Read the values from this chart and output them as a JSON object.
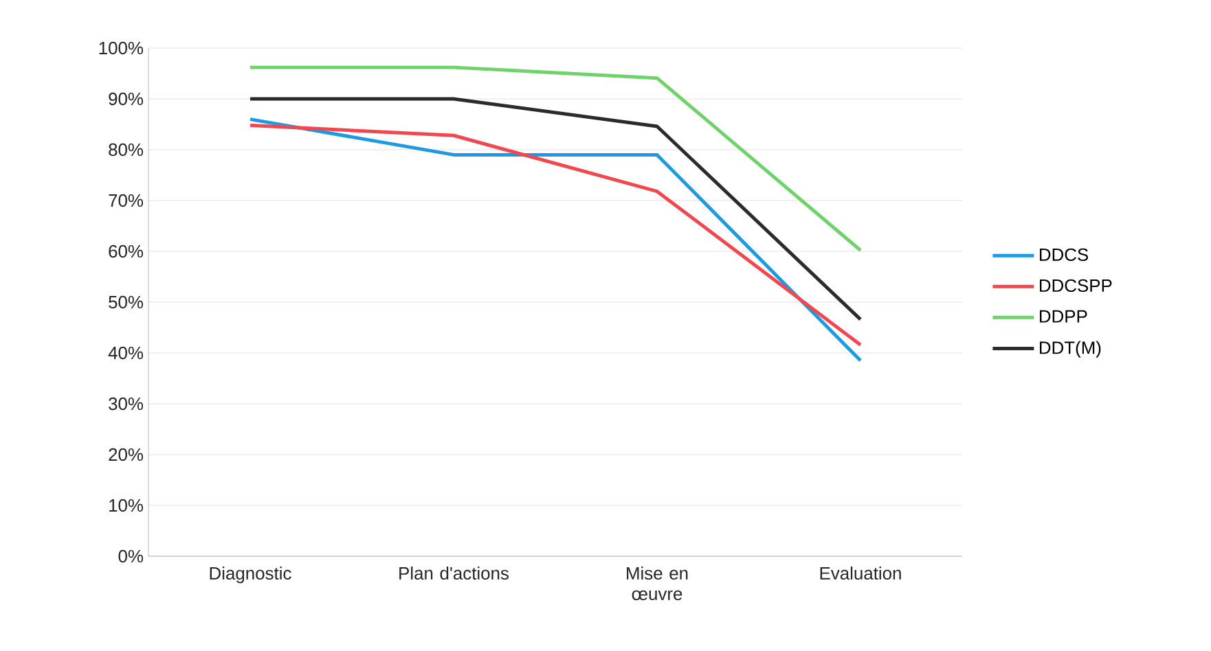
{
  "chart_data": {
    "type": "line",
    "categories": [
      "Diagnostic",
      "Plan d'actions",
      "Mise en œuvre",
      "Evaluation"
    ],
    "series": [
      {
        "name": "DDCS",
        "color": "#1e9be0",
        "values": [
          86,
          79,
          79,
          38.5
        ]
      },
      {
        "name": "DDCSPP",
        "color": "#f0484e",
        "values": [
          84.8,
          82.8,
          71.8,
          41.6
        ]
      },
      {
        "name": "DDPP",
        "color": "#6fd26a",
        "values": [
          96.2,
          96.2,
          94.1,
          60.2
        ]
      },
      {
        "name": "DDT(M)",
        "color": "#2b2b2b",
        "values": [
          90,
          90,
          84.6,
          46.6
        ]
      }
    ],
    "ylim": [
      0,
      100
    ],
    "yticks": [
      {
        "value": 0,
        "label": "0%"
      },
      {
        "value": 10,
        "label": "10%"
      },
      {
        "value": 20,
        "label": "20%"
      },
      {
        "value": 30,
        "label": "30%"
      },
      {
        "value": 40,
        "label": "40%"
      },
      {
        "value": 50,
        "label": "50%"
      },
      {
        "value": 60,
        "label": "60%"
      },
      {
        "value": 70,
        "label": "70%"
      },
      {
        "value": 80,
        "label": "80%"
      },
      {
        "value": 90,
        "label": "90%"
      },
      {
        "value": 100,
        "label": "100%"
      }
    ],
    "grid": "y",
    "legend": "right",
    "marker": "none",
    "line_style": "solid"
  }
}
